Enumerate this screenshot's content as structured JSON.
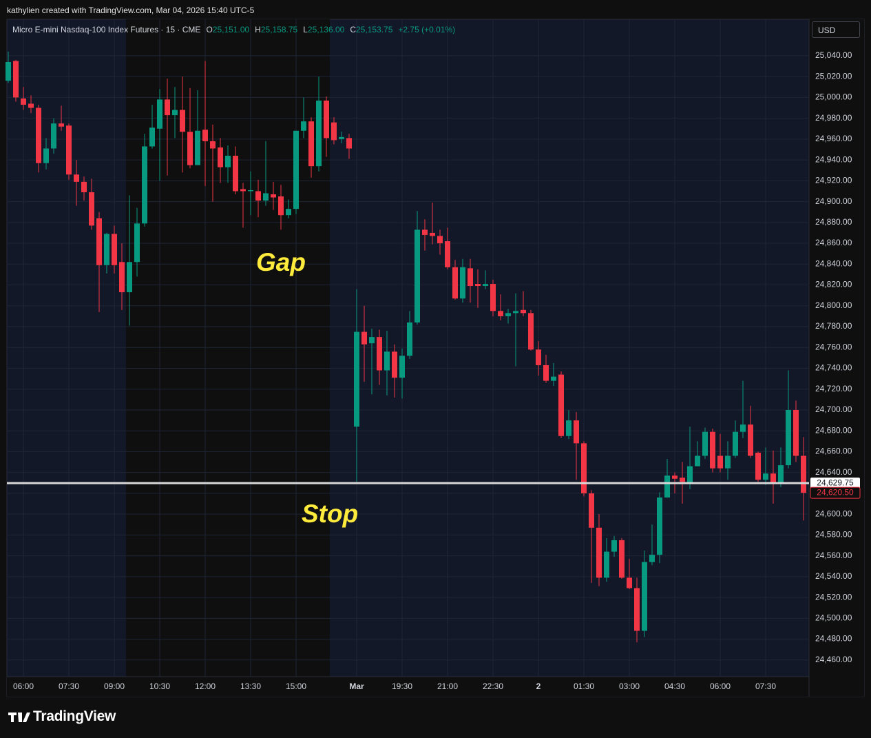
{
  "attribution": "kathylien created with TradingView.com, Mar 04, 2026 15:40 UTC-5",
  "legend": {
    "symbol": "Micro E-mini Nasdaq-100 Index Futures · 15 · CME",
    "ohlc": [
      {
        "label": "O",
        "value": "25,151.00"
      },
      {
        "label": "H",
        "value": "25,158.75"
      },
      {
        "label": "L",
        "value": "25,136.00"
      },
      {
        "label": "C",
        "value": "25,153.75"
      }
    ],
    "change": "+2.75 (+0.01%)"
  },
  "currency": "USD",
  "logo": "TradingView",
  "chart_data": {
    "type": "candlestick",
    "up_color": "#089981",
    "down_color": "#f23645",
    "grid": true,
    "annotations": [
      "Gap",
      "Stop"
    ],
    "x": [
      null,
      null,
      "06:00",
      null,
      null,
      null,
      null,
      null,
      "07:30",
      null,
      null,
      null,
      null,
      null,
      "09:00",
      null,
      null,
      null,
      null,
      null,
      "10:30",
      null,
      null,
      null,
      null,
      null,
      "12:00",
      null,
      null,
      null,
      null,
      null,
      "13:30",
      null,
      null,
      null,
      null,
      null,
      "15:00",
      null,
      null,
      null,
      null,
      null,
      null,
      null,
      "Mar",
      null,
      null,
      null,
      null,
      null,
      "19:30",
      null,
      null,
      null,
      null,
      null,
      "21:00",
      null,
      null,
      null,
      null,
      null,
      "22:30",
      null,
      null,
      null,
      null,
      null,
      "2",
      null,
      null,
      null,
      null,
      null,
      "01:30",
      null,
      null,
      null,
      null,
      null,
      "03:00",
      null,
      null,
      null,
      null,
      null,
      "04:30",
      null,
      null,
      null,
      null,
      null,
      "06:00",
      null,
      null,
      null,
      null,
      null,
      "07:30",
      null,
      null,
      null,
      null,
      null
    ],
    "open": [
      25016,
      25035,
      24999,
      24994,
      24990,
      24937,
      24951,
      24975,
      24973,
      24926,
      24919,
      24909,
      24884,
      24839,
      24869,
      24842,
      24813,
      24842,
      24879,
      24953,
      24970,
      24998,
      24983,
      24988,
      24967,
      24935,
      24969,
      24958,
      24952,
      24933,
      24944,
      24912,
      24910,
      24910,
      24901,
      24907,
      24905,
      24887,
      24893,
      24968,
      24977,
      24934,
      24997,
      24976,
      24960,
      24961,
      24684,
      24775,
      24764,
      24770,
      24738,
      24756,
      24731,
      24752,
      24784,
      24873,
      24870,
      24867,
      24862,
      24837,
      24807,
      24836,
      24821,
      24819,
      24821,
      24795,
      24790,
      24793,
      24796,
      24793,
      24758,
      24743,
      24728,
      24734,
      24675,
      24690,
      24668,
      24620,
      24587,
      24539,
      24564,
      24575,
      24539,
      24529,
      24488,
      24554,
      24561,
      24616,
      24637,
      24635,
      24630,
      24646,
      24656,
      24679,
      24656,
      24644,
      24656,
      24679,
      24686,
      24659,
      24633,
      24639,
      24630,
      24647,
      24700,
      24656
    ],
    "high": [
      25044,
      25036,
      25010,
      25002,
      24993,
      24961,
      24980,
      24992,
      24975,
      24940,
      24924,
      24922,
      24890,
      24870,
      24877,
      24860,
      24906,
      24894,
      24965,
      24993,
      25008,
      25018,
      25010,
      25020,
      25009,
      25007,
      25035,
      24974,
      24961,
      24954,
      24953,
      24918,
      24929,
      24921,
      24958,
      24919,
      24916,
      24902,
      24968,
      25000,
      24981,
      25020,
      25001,
      24981,
      24967,
      24965,
      24816,
      24800,
      24778,
      24777,
      24776,
      24763,
      24759,
      24795,
      24891,
      24883,
      24899,
      24873,
      24875,
      24844,
      24845,
      24845,
      24835,
      24834,
      24825,
      24811,
      24797,
      24812,
      24814,
      24796,
      24766,
      24753,
      24745,
      24737,
      24700,
      24698,
      24670,
      24623,
      24600,
      24577,
      24579,
      24577,
      24557,
      24539,
      24565,
      24590,
      24621,
      24653,
      24640,
      24650,
      24684,
      24670,
      24683,
      24682,
      24677,
      24670,
      24690,
      24728,
      24704,
      24660,
      24664,
      24661,
      24664,
      24738,
      24709,
      24674
    ],
    "low": [
      25014,
      24996,
      24988,
      24985,
      24928,
      24931,
      24946,
      24968,
      24921,
      24896,
      24901,
      24873,
      24794,
      24831,
      24831,
      24796,
      24781,
      24828,
      24876,
      24951,
      24920,
      24925,
      24961,
      24928,
      24932,
      24935,
      24915,
      24900,
      24918,
      24918,
      24907,
      24875,
      24887,
      24885,
      24896,
      24892,
      24873,
      24884,
      24888,
      24961,
      24923,
      24929,
      24943,
      24955,
      24956,
      24941,
      24631,
      24727,
      24715,
      24724,
      24714,
      24712,
      24711,
      24749,
      24782,
      24853,
      24859,
      24849,
      24835,
      24806,
      24803,
      24803,
      24798,
      24816,
      24790,
      24786,
      24783,
      24742,
      24790,
      24757,
      24733,
      24726,
      24723,
      24673,
      24672,
      24633,
      24617,
      24534,
      24531,
      24535,
      24559,
      24538,
      24528,
      24477,
      24482,
      24551,
      24553,
      24617,
      24620,
      24610,
      24624,
      24648,
      24653,
      24640,
      24640,
      24633,
      24654,
      24673,
      24654,
      24631,
      24628,
      24610,
      24626,
      24644,
      24650,
      24594
    ],
    "close": [
      25034,
      25000,
      24993,
      24990,
      24937,
      24951,
      24975,
      24972,
      24926,
      24919,
      24909,
      24877,
      24839,
      24869,
      24839,
      24813,
      24842,
      24879,
      24953,
      24971,
      24998,
      24983,
      24988,
      24967,
      24935,
      24968,
      24958,
      24951,
      24933,
      24944,
      24910,
      24910,
      24911,
      24901,
      24908,
      24904,
      24887,
      24893,
      24968,
      24977,
      24934,
      24997,
      24961,
      24959,
      24962,
      24951,
      24775,
      24763,
      24770,
      24738,
      24756,
      24731,
      24752,
      24784,
      24873,
      24868,
      24867,
      24860,
      24837,
      24807,
      24837,
      24819,
      24819,
      24821,
      24795,
      24790,
      24793,
      24795,
      24793,
      24758,
      24743,
      24728,
      24732,
      24675,
      24690,
      24668,
      24620,
      24587,
      24539,
      24564,
      24575,
      24539,
      24529,
      24488,
      24554,
      24561,
      24616,
      24637,
      24634,
      24631,
      24646,
      24656,
      24679,
      24644,
      24644,
      24656,
      24679,
      24686,
      24656,
      24633,
      24639,
      24630,
      24647,
      24700,
      24656,
      24620.5
    ],
    "ylim": [
      24444,
      25075
    ],
    "yticks": [
      {
        "value": 24460,
        "label": "24,460.00"
      },
      {
        "value": 24480,
        "label": "24,480.00"
      },
      {
        "value": 24500,
        "label": "24,500.00"
      },
      {
        "value": 24520,
        "label": "24,520.00"
      },
      {
        "value": 24540,
        "label": "24,540.00"
      },
      {
        "value": 24560,
        "label": "24,560.00"
      },
      {
        "value": 24580,
        "label": "24,580.00"
      },
      {
        "value": 24600,
        "label": "24,600.00"
      },
      {
        "value": 24620,
        "label": "24,620.00"
      },
      {
        "value": 24640,
        "label": "24,640.00"
      },
      {
        "value": 24660,
        "label": "24,660.00"
      },
      {
        "value": 24680,
        "label": "24,680.00"
      },
      {
        "value": 24700,
        "label": "24,700.00"
      },
      {
        "value": 24720,
        "label": "24,720.00"
      },
      {
        "value": 24740,
        "label": "24,740.00"
      },
      {
        "value": 24760,
        "label": "24,760.00"
      },
      {
        "value": 24780,
        "label": "24,780.00"
      },
      {
        "value": 24800,
        "label": "24,800.00"
      },
      {
        "value": 24820,
        "label": "24,820.00"
      },
      {
        "value": 24840,
        "label": "24,840.00"
      },
      {
        "value": 24860,
        "label": "24,860.00"
      },
      {
        "value": 24880,
        "label": "24,880.00"
      },
      {
        "value": 24900,
        "label": "24,900.00"
      },
      {
        "value": 24920,
        "label": "24,920.00"
      },
      {
        "value": 24940,
        "label": "24,940.00"
      },
      {
        "value": 24960,
        "label": "24,960.00"
      },
      {
        "value": 24980,
        "label": "24,980.00"
      },
      {
        "value": 25000,
        "label": "25,000.00"
      },
      {
        "value": 25020,
        "label": "25,020.00"
      },
      {
        "value": 25040,
        "label": "25,040.00"
      }
    ],
    "price_line": {
      "value": 24629.75,
      "label": "24,629.75",
      "color": "#d9d9d9"
    },
    "last_price": {
      "value": 24620.5,
      "label": "24,620.50"
    }
  }
}
